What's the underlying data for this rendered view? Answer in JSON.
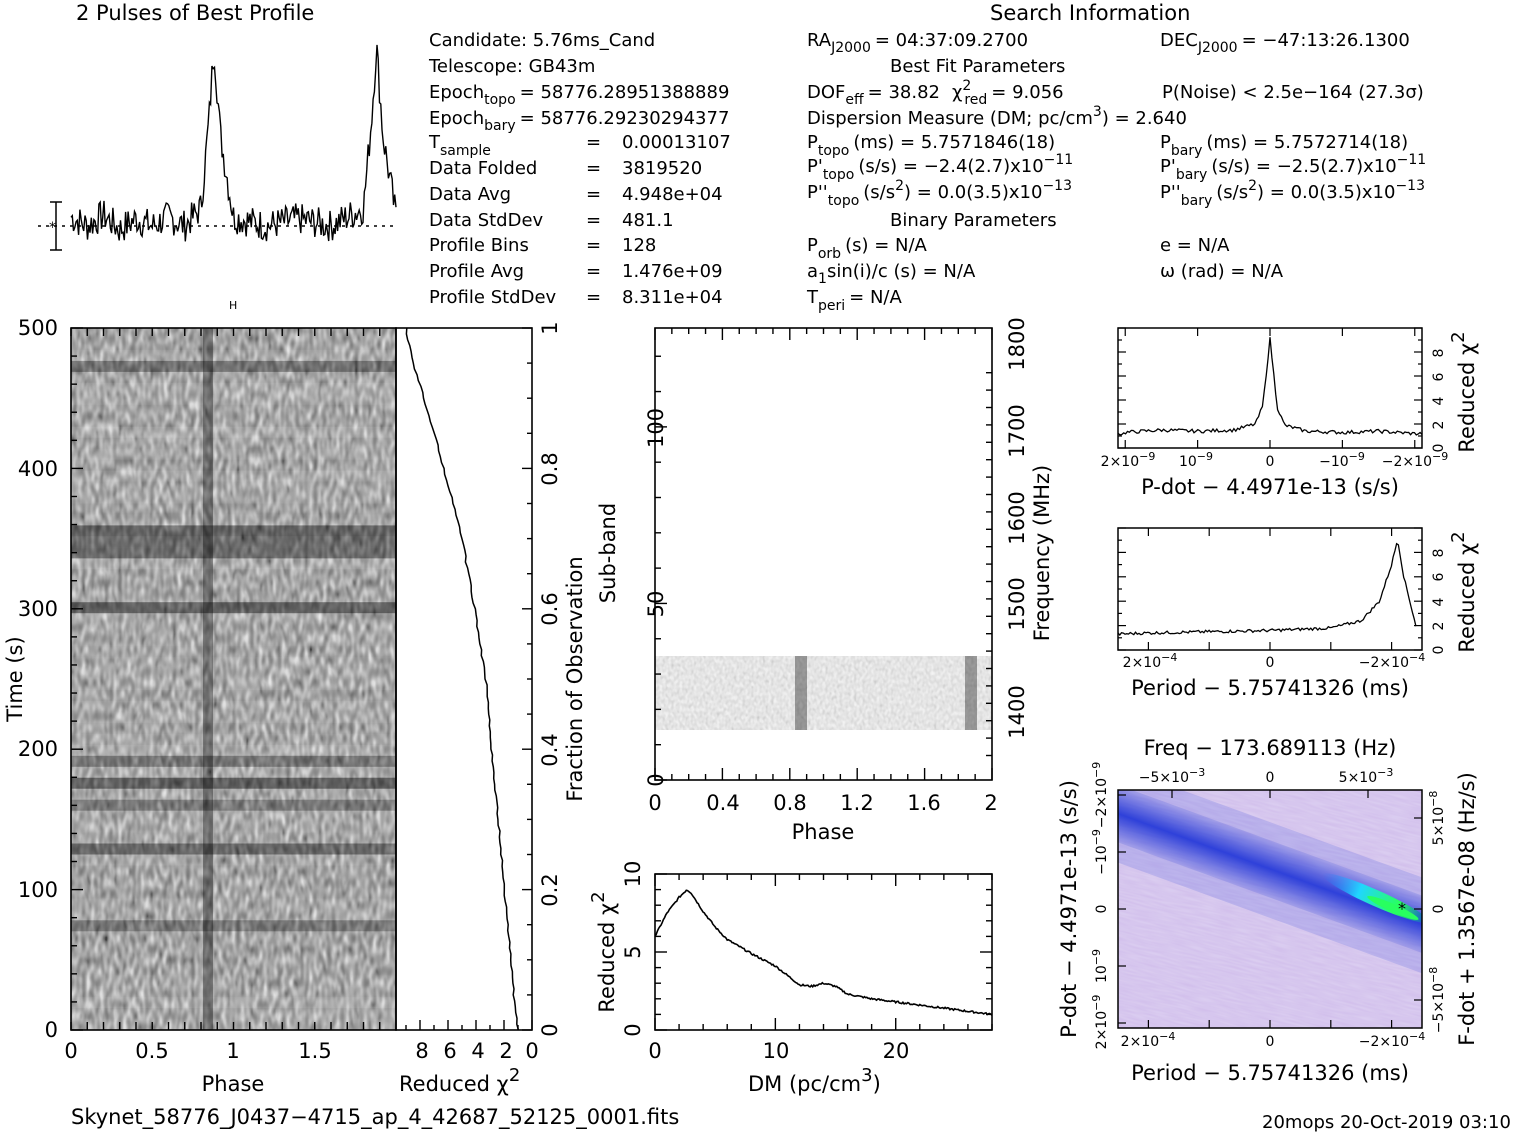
{
  "profile": {
    "title": "2 Pulses of Best Profile"
  },
  "info": {
    "title": "Search Information",
    "candidate": "Candidate:  5.76ms_Cand",
    "telescope": "Telescope:  GB43m",
    "epoch_topo": "= 58776.28951388889",
    "epoch_bary": "= 58776.29230294377",
    "t_sample": "0.00013107",
    "data_folded": "3819520",
    "data_avg": "4.948e+04",
    "data_stddev": "481.1",
    "profile_bins": "128",
    "profile_avg": "1.476e+09",
    "profile_stddev": "8.311e+04",
    "ra": "= 04:37:09.2700",
    "dec": "= −47:13:26.1300",
    "best_fit_title": "Best Fit Parameters",
    "dof": "= 38.82",
    "chi2_red": "= 9.056",
    "p_noise": "P(Noise) < 2.5e−164  (27.3σ)",
    "dm_line_a": "Dispersion Measure (DM; pc/cm",
    "dm_line_b": ") = 2.640",
    "p_topo": "(ms) =  5.7571846(18)",
    "p_bary": "(ms) =  5.7572714(18)",
    "pd_topo": "(s/s) = −2.4(2.7)x10",
    "pd_topo_exp": "−11",
    "pd_bary": "(s/s) = −2.5(2.7)x10",
    "pd_bary_exp": "−11",
    "pdd_topo_a": "(s/s",
    "pdd_topo_b": ") = 0.0(3.5)x10",
    "pdd_exp": "−13",
    "binary_title": "Binary Parameters",
    "p_orb": "(s) = N/A",
    "ecc": "e = N/A",
    "a1": "sin(i)/c (s) = N/A",
    "omega": "ω (rad) = N/A",
    "t_peri": "= N/A"
  },
  "axes": {
    "time_label": "Time (s)",
    "phase_label": "Phase",
    "redchi_label": "Reduced χ",
    "frac_label": "Fraction of Observation",
    "subband_label": "Sub-band",
    "freq_label": "Frequency (MHz)",
    "dm_label": "DM (pc/cm",
    "pdot_label": "P-dot − 4.4971e-13 (s/s)",
    "period_label": "Period − 5.75741326 (ms)",
    "freq_top_label": "Freq − 173.689113 (Hz)",
    "pdot_left_label": "P-dot − 4.4971e-13 (s/s)",
    "fdot_right_label": "F-dot + 1.3567e-08 (Hz/s)"
  },
  "footer": {
    "filename": "Skynet_58776_J0437−4715_ap_4_42687_52125_0001.fits",
    "stamp": "20mops 20-Oct-2019 03:10"
  },
  "colors": {
    "ink": "#000000",
    "plane_low": "#e8c8e6",
    "plane_mid": "#2a3fd0",
    "plane_high": "#28ff60"
  },
  "chart_data": [
    {
      "type": "line",
      "title": "2 Pulses of Best Profile",
      "x": [
        0,
        0.1,
        0.2,
        0.3,
        0.4,
        0.5,
        0.6,
        0.7,
        0.8,
        0.85,
        0.88,
        0.92,
        1.0,
        1.2,
        1.4,
        1.6,
        1.8,
        1.85,
        1.88,
        1.92,
        2.0
      ],
      "series": [
        {
          "values": [
            0.05,
            0.0,
            0.06,
            -0.02,
            0.04,
            0.0,
            0.05,
            0.0,
            0.1,
            0.6,
            1.0,
            0.5,
            0.05,
            0.0,
            0.04,
            0.0,
            0.1,
            0.6,
            1.0,
            0.5,
            0.05
          ]
        }
      ],
      "xlim": [
        0,
        2
      ]
    },
    {
      "type": "heatmap",
      "title": "",
      "xlabel": "Phase",
      "ylabel": "Time (s)",
      "xlim": [
        0,
        2
      ],
      "ylim": [
        0,
        500
      ],
      "x_ticks": [
        "0",
        "0.5",
        "1",
        "1.5"
      ],
      "y_ticks": [
        "0",
        "100",
        "200",
        "300",
        "400",
        "500"
      ]
    },
    {
      "type": "line",
      "xlabel": "Reduced χ²",
      "ylabel": "Fraction of Observation",
      "x_ticks": [
        "8",
        "6",
        "4",
        "2",
        "0"
      ],
      "y_ticks": [
        "0",
        "0.2",
        "0.4",
        "0.6",
        "0.8",
        "1"
      ],
      "x": [
        0,
        0.05,
        0.1,
        0.2,
        0.3,
        0.4,
        0.5,
        0.6,
        0.7,
        0.8,
        0.9,
        0.95,
        1.0
      ],
      "series": [
        {
          "values": [
            1.0,
            1.3,
            1.5,
            2.0,
            2.4,
            2.9,
            3.3,
            4.1,
            5.0,
            6.3,
            7.7,
            8.5,
            9.0
          ]
        }
      ]
    },
    {
      "type": "heatmap",
      "xlabel": "Phase",
      "ylabel": "Sub-band",
      "y2label": "Frequency (MHz)",
      "xlim": [
        0,
        2
      ],
      "ylim": [
        0,
        128
      ],
      "x_ticks": [
        "0",
        "0.4",
        "0.8",
        "1.2",
        "1.6",
        "2"
      ],
      "y_ticks": [
        "0",
        "50",
        "100"
      ],
      "y2_ticks": [
        "1400",
        "1500",
        "1600",
        "1700",
        "1800"
      ],
      "active_subbands": [
        15,
        35
      ]
    },
    {
      "type": "line",
      "xlabel": "DM (pc/cm³)",
      "ylabel": "Reduced χ²",
      "xlim": [
        0,
        28
      ],
      "ylim": [
        0,
        10
      ],
      "x_ticks": [
        "0",
        "10",
        "20"
      ],
      "y_ticks": [
        "0",
        "5",
        "10"
      ],
      "x": [
        0,
        1,
        2,
        2.64,
        3,
        4,
        5,
        6,
        8,
        10,
        11,
        12,
        13,
        14,
        15,
        16,
        18,
        20,
        22,
        24,
        26,
        28
      ],
      "series": [
        {
          "values": [
            6.0,
            7.5,
            8.5,
            9.0,
            8.8,
            7.6,
            6.6,
            5.8,
            4.9,
            4.1,
            3.5,
            2.9,
            2.8,
            3.0,
            2.8,
            2.3,
            2.0,
            1.8,
            1.6,
            1.4,
            1.2,
            1.0
          ]
        }
      ]
    },
    {
      "type": "line",
      "xlabel": "P-dot − 4.4971e-13 (s/s)",
      "ylabel": "Reduced χ²",
      "xlim": [
        2e-09,
        -2e-09
      ],
      "ylim": [
        0,
        10
      ],
      "x_ticks": [
        "2×10⁻⁹",
        "10⁻⁹",
        "0",
        "−10⁻⁹",
        "−2×10⁻⁹"
      ],
      "y_ticks": [
        "0",
        "2",
        "4",
        "6",
        "8"
      ],
      "x": [
        2e-09,
        1.5e-09,
        1e-09,
        5e-10,
        2e-10,
        1e-10,
        0,
        -1e-10,
        -2e-10,
        -5e-10,
        -1e-09,
        -1.5e-09,
        -2e-09
      ],
      "series": [
        {
          "values": [
            1.3,
            1.5,
            1.4,
            1.5,
            2.0,
            3.5,
            9.1,
            3.4,
            1.9,
            1.4,
            1.3,
            1.4,
            1.2
          ]
        }
      ]
    },
    {
      "type": "line",
      "xlabel": "Period − 5.75741326 (ms)",
      "ylabel": "Reduced χ²",
      "xlim": [
        0.00025,
        -0.00025
      ],
      "ylim": [
        0,
        10
      ],
      "x_ticks": [
        "2×10⁻⁴",
        "0",
        "−2×10⁻⁴"
      ],
      "y_ticks": [
        "0",
        "2",
        "4",
        "6",
        "8"
      ],
      "x": [
        0.00025,
        0.0002,
        0.0001,
        0,
        -0.0001,
        -0.00015,
        -0.00018,
        -0.0002,
        -0.00021,
        -0.00022,
        -0.00024
      ],
      "series": [
        {
          "values": [
            1.3,
            1.4,
            1.5,
            1.6,
            1.8,
            2.4,
            4.0,
            7.0,
            9.1,
            6.0,
            2.0
          ]
        }
      ]
    },
    {
      "type": "heatmap",
      "xlabel": "Period − 5.75741326 (ms)",
      "ylabel": "P-dot − 4.4971e-13 (s/s)",
      "x2label": "Freq − 173.689113 (Hz)",
      "y2label": "F-dot + 1.3567e-08 (Hz/s)",
      "x_ticks": [
        "2×10⁻⁴",
        "0",
        "−2×10⁻⁴"
      ],
      "x2_ticks": [
        "−5×10⁻³",
        "0",
        "5×10⁻³"
      ],
      "y_ticks": [
        "2×10⁻⁹",
        "10⁻⁹",
        "0",
        "−10⁻⁹",
        "−2×10⁻⁹"
      ],
      "y2_ticks": [
        "−5×10⁻⁸",
        "0",
        "5×10⁻⁸"
      ],
      "best": {
        "period_offset": -0.00021,
        "pdot_offset": 0
      }
    }
  ]
}
